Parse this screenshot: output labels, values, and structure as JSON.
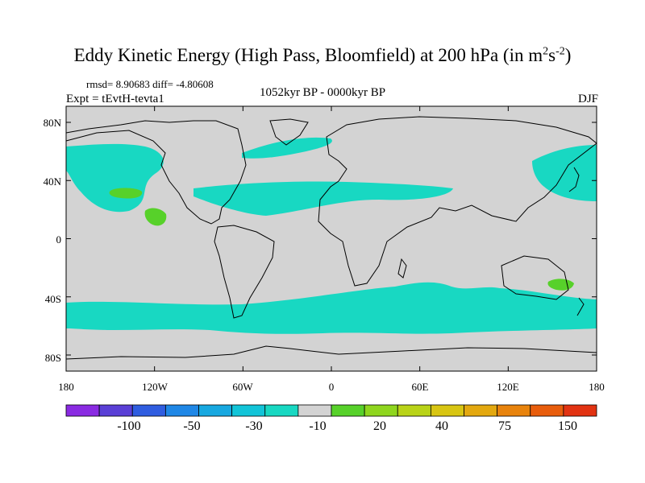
{
  "title": "Eddy Kinetic Energy (High Pass, Bloomfield) at 200 hPa (in m",
  "title_unit_sup1": "2",
  "title_unit_s": "s",
  "title_unit_sup2": "-2",
  "title_close": ")",
  "stats": "rmsd= 8.90683 diff= -4.80608",
  "expt": "Expt = tEvtH-tevta1",
  "period": "1052kyr BP - 0000kyr BP",
  "season": "DJF",
  "lat_labels": [
    "80N",
    "40N",
    "0",
    "40S",
    "80S"
  ],
  "lon_labels": [
    "180",
    "120W",
    "60W",
    "0",
    "60E",
    "120E",
    "180"
  ],
  "colorbar": {
    "labels": [
      "-100",
      "-50",
      "-30",
      "-10",
      "20",
      "40",
      "75",
      "150"
    ],
    "colors": [
      "#8a2be2",
      "#5a3fd6",
      "#2f5de0",
      "#1f87e6",
      "#17a8e0",
      "#12c4d8",
      "#18d8c2",
      "#d3d3d3",
      "#57d12a",
      "#8fd61e",
      "#b9d318",
      "#d8c512",
      "#e3a80f",
      "#e8830c",
      "#e85d0c",
      "#e23312"
    ]
  },
  "colors": {
    "land_background": "#d3d3d3",
    "low_band": "#18d8c2",
    "high_patch": "#57d12a",
    "coastline": "#000000"
  }
}
